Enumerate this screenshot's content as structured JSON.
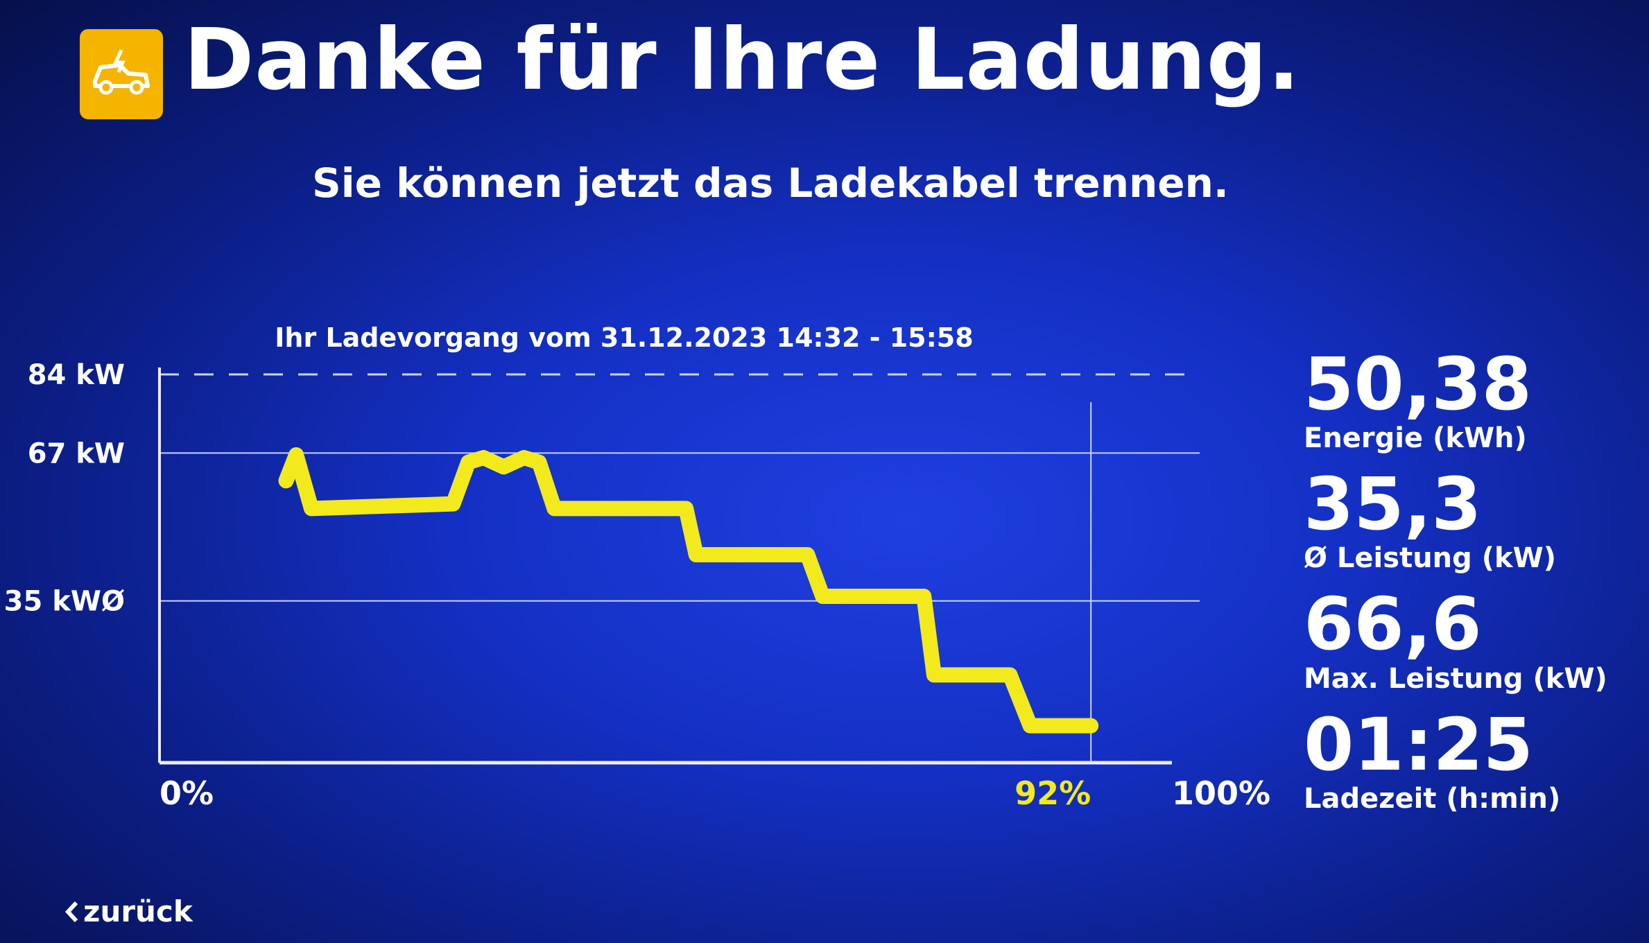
{
  "header": {
    "title": "Danke für Ihre Ladung.",
    "subtitle": "Sie können jetzt das Ladekabel trennen."
  },
  "chart_data": {
    "type": "line",
    "title": "Ihr Ladevorgang vom 31.12.2023 14:32 - 15:58",
    "x": [
      12.5,
      13.5,
      15,
      29,
      30.5,
      32,
      34,
      36,
      37.5,
      39,
      52,
      53,
      64,
      65.5,
      75.5,
      76.5,
      84,
      86,
      92
    ],
    "series": [
      {
        "name": "Leistung",
        "color": "#f2ea1c",
        "values": [
          61,
          66.6,
          55,
          56,
          65,
          66,
          64,
          66,
          65,
          55,
          55,
          45,
          45,
          36,
          36,
          19,
          19,
          8,
          8
        ]
      }
    ],
    "xlim": [
      0,
      100
    ],
    "xticks": [
      {
        "value": 0,
        "label": "0%"
      },
      {
        "value": 92,
        "label": "92%"
      },
      {
        "value": 100,
        "label": "100%"
      }
    ],
    "ylim": [
      0,
      84
    ],
    "yticks": [
      {
        "value": 35,
        "label": "35 kWØ"
      },
      {
        "value": 67,
        "label": "67 kW"
      },
      {
        "value": 84,
        "label": "84 kW"
      }
    ],
    "grid": true
  },
  "stats": [
    {
      "value": "50,38",
      "label": "Energie (kWh)"
    },
    {
      "value": "35,3",
      "label": "Ø Leistung (kW)"
    },
    {
      "value": "66,6",
      "label": "Max. Leistung (kW)"
    },
    {
      "value": "01:25",
      "label": "Ladezeit (h:min)"
    }
  ],
  "back": "zurück"
}
